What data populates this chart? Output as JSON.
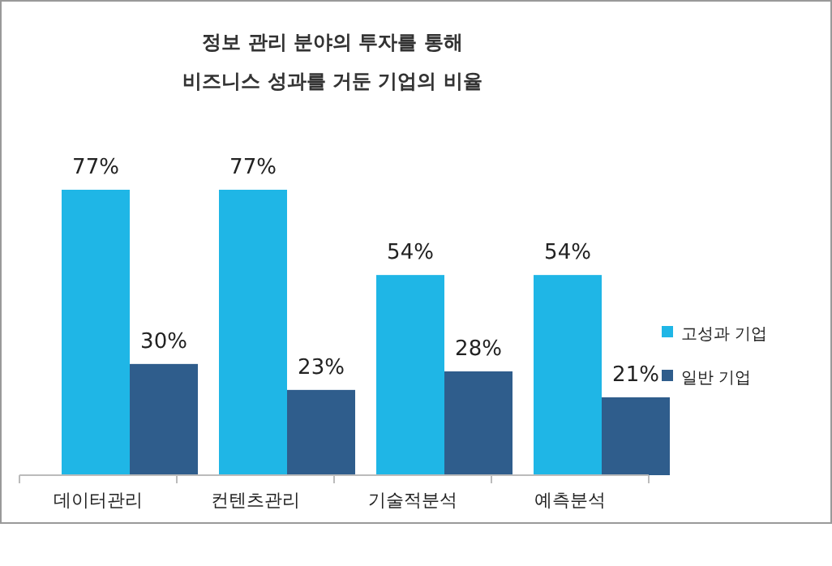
{
  "chart_data": {
    "type": "bar",
    "title": "정보 관리 분야의 투자를 통해",
    "subtitle": "비즈니스 성과를 거둔 기업의 비율",
    "categories": [
      "데이터관리",
      "컨텐츠관리",
      "기술적분석",
      "예측분석"
    ],
    "series": [
      {
        "name": "고성과 기업",
        "color": "#1fb6e6",
        "values": [
          77,
          77,
          54,
          54
        ],
        "value_labels": [
          "77%",
          "77%",
          "54%",
          "54%"
        ]
      },
      {
        "name": "일반 기업",
        "color": "#2f5d8c",
        "values": [
          30,
          23,
          28,
          21
        ],
        "value_labels": [
          "30%",
          "23%",
          "28%",
          "21%"
        ]
      }
    ],
    "legend": "right"
  }
}
